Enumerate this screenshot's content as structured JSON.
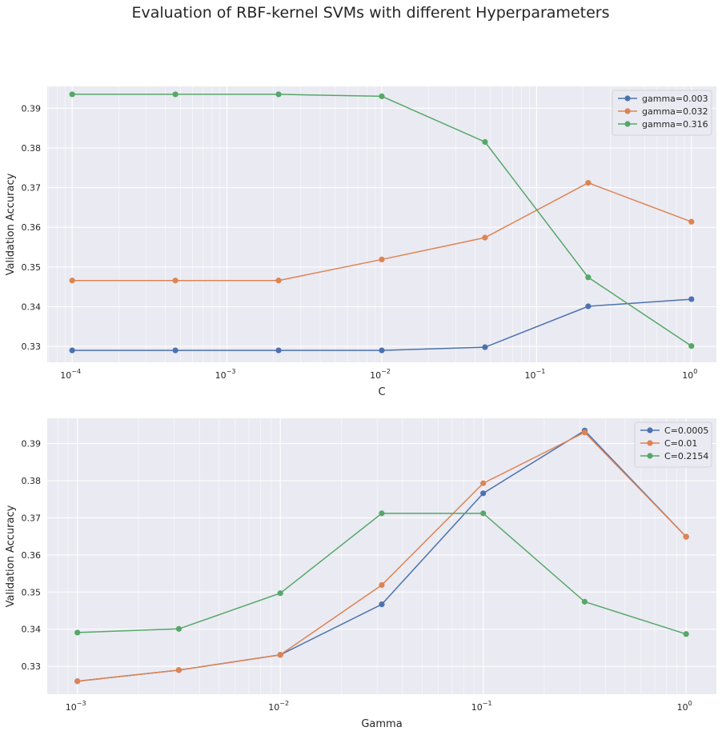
{
  "suptitle": "Evaluation of  RBF-kernel SVMs with different Hyperparameters",
  "chart_data": [
    {
      "type": "line",
      "xscale": "log",
      "xlabel": "C",
      "ylabel": "Validation Accuracy",
      "xlim": [
        6.9e-05,
        1.45
      ],
      "ylim": [
        0.326,
        0.3955
      ],
      "grid": true,
      "legend_placement": "top-right",
      "xticks": [
        {
          "base": "10",
          "exp": "−4",
          "value": 0.0001
        },
        {
          "base": "10",
          "exp": "−3",
          "value": 0.001
        },
        {
          "base": "10",
          "exp": "−2",
          "value": 0.01
        },
        {
          "base": "10",
          "exp": "−1",
          "value": 0.1
        },
        {
          "base": "10",
          "exp": "0",
          "value": 1
        }
      ],
      "yticks": [
        "0.33",
        "0.34",
        "0.35",
        "0.36",
        "0.37",
        "0.38",
        "0.39"
      ],
      "x": [
        0.0001,
        0.0004642,
        0.0021544,
        0.01,
        0.0464159,
        0.2154435,
        1
      ],
      "series": [
        {
          "name": "gamma=0.003",
          "color": "#4c72b0",
          "values": [
            0.329,
            0.329,
            0.329,
            0.329,
            0.3298,
            0.3401,
            0.3419
          ]
        },
        {
          "name": "gamma=0.032",
          "color": "#dd8452",
          "values": [
            0.3466,
            0.3466,
            0.3466,
            0.3519,
            0.3574,
            0.3712,
            0.3614
          ]
        },
        {
          "name": "gamma=0.316",
          "color": "#55a868",
          "values": [
            0.3935,
            0.3935,
            0.3935,
            0.393,
            0.3815,
            0.3474,
            0.3301
          ]
        }
      ]
    },
    {
      "type": "line",
      "xscale": "log",
      "xlabel": "Gamma",
      "ylabel": "Validation Accuracy",
      "xlim": [
        0.00071,
        1.41
      ],
      "ylim": [
        0.3225,
        0.3968
      ],
      "grid": true,
      "legend_placement": "top-right",
      "xticks": [
        {
          "base": "10",
          "exp": "−3",
          "value": 0.001
        },
        {
          "base": "10",
          "exp": "−2",
          "value": 0.01
        },
        {
          "base": "10",
          "exp": "−1",
          "value": 0.1
        },
        {
          "base": "10",
          "exp": "0",
          "value": 1
        }
      ],
      "yticks": [
        "0.33",
        "0.34",
        "0.35",
        "0.36",
        "0.37",
        "0.38",
        "0.39"
      ],
      "x": [
        0.001,
        0.0031623,
        0.01,
        0.0316228,
        0.1,
        0.3162278,
        1
      ],
      "series": [
        {
          "name": "C=0.0005",
          "color": "#4c72b0",
          "values": [
            0.326,
            0.329,
            0.3331,
            0.3467,
            0.3766,
            0.3935,
            0.3649
          ]
        },
        {
          "name": "C=0.01",
          "color": "#dd8452",
          "values": [
            0.326,
            0.329,
            0.3331,
            0.3519,
            0.3793,
            0.393,
            0.3649
          ]
        },
        {
          "name": "C=0.2154",
          "color": "#55a868",
          "values": [
            0.3391,
            0.3401,
            0.3497,
            0.3712,
            0.3712,
            0.3474,
            0.3387
          ]
        }
      ]
    }
  ]
}
